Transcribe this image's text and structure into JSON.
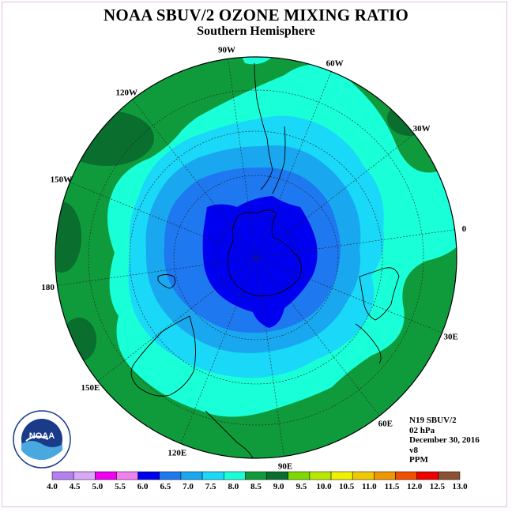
{
  "title": "NOAA SBUV/2 OZONE MIXING RATIO",
  "subtitle": "Southern Hemisphere",
  "longitude_labels": [
    "90W",
    "60W",
    "30W",
    "0",
    "30E",
    "60E",
    "90E",
    "120E",
    "150E",
    "180",
    "150W",
    "120W"
  ],
  "info": {
    "satellite": "N19 SBUV/2",
    "level": "02 hPa",
    "date": "December 30, 2016",
    "version": "v8",
    "units": "PPM"
  },
  "logo_text": "NOAA",
  "logo_ring_top": "NATIONAL OCEANIC AND ATMOSPHERIC ADMINISTRATION",
  "logo_ring_bottom": "U.S. DEPARTMENT OF COMMERCE",
  "colorbar": {
    "ticks": [
      "4.0",
      "4.5",
      "5.0",
      "5.5",
      "6.0",
      "6.5",
      "7.0",
      "7.5",
      "8.0",
      "8.5",
      "9.0",
      "9.5",
      "10.0",
      "10.5",
      "11.0",
      "11.5",
      "12.0",
      "12.5",
      "13.0"
    ],
    "colors": [
      "#b280f0",
      "#d8a8f8",
      "#f000f0",
      "#f080f0",
      "#0000f0",
      "#1e78f0",
      "#19a8f0",
      "#19d8f8",
      "#19ffd8",
      "#0f9b3c",
      "#0a6e2e",
      "#7fd800",
      "#b8e800",
      "#f0f000",
      "#f0c800",
      "#f09600",
      "#f05000",
      "#f00000",
      "#8c5032"
    ]
  },
  "colors": {
    "level_8_5": "#0f9b3c",
    "level_8_0": "#19ffd8",
    "level_7_5": "#19d8f8",
    "level_7_0": "#19a8f0",
    "level_6_5": "#1e78f0",
    "level_6_0": "#0000f0",
    "level_9_0": "#0a6e2e"
  }
}
